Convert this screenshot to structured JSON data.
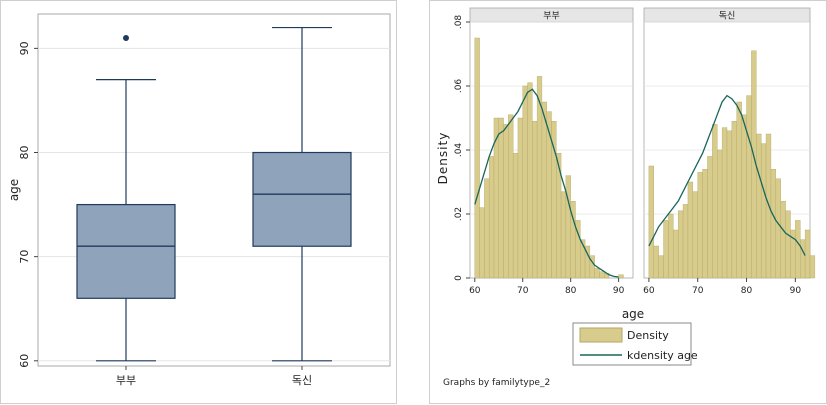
{
  "chart_data": [
    {
      "type": "box",
      "ylabel": "age",
      "yticks": [
        60,
        70,
        80,
        90
      ],
      "ytick_labels": [
        "60",
        "70",
        "80",
        "90"
      ],
      "ylim": [
        59.5,
        93.3
      ],
      "grid": true,
      "categories": [
        "부부",
        "독신"
      ],
      "boxes": [
        {
          "category": "부부",
          "min": 60,
          "q1": 66,
          "median": 71,
          "q3": 75,
          "max": 87,
          "outliers": [
            91
          ]
        },
        {
          "category": "독신",
          "min": 60,
          "q1": 71,
          "median": 76,
          "q3": 80,
          "max": 92,
          "outliers": []
        }
      ],
      "colors": {
        "box_fill": "#8fa3bb",
        "box_stroke": "#1f3b5c",
        "outlier": "#1f3b5c",
        "grid": "#e5e5e5"
      }
    },
    {
      "type": "histogram_density",
      "panels": [
        "부부",
        "독신"
      ],
      "ylabel": "Density",
      "xlabel": "age",
      "xticks": [
        60,
        70,
        80,
        90
      ],
      "xtick_labels": [
        "60",
        "70",
        "80",
        "90"
      ],
      "yticks": [
        0,
        0.02,
        0.04,
        0.06,
        0.08
      ],
      "ytick_labels": [
        "0",
        ".02",
        ".04",
        ".06",
        ".08"
      ],
      "xlim": [
        59,
        93
      ],
      "ylim": [
        0,
        0.08
      ],
      "bin_width": 1,
      "histograms": [
        {
          "panel": "부부",
          "bin_start": 60,
          "values": [
            0.075,
            0.022,
            0.031,
            0.038,
            0.05,
            0.05,
            0.048,
            0.051,
            0.039,
            0.05,
            0.06,
            0.061,
            0.049,
            0.063,
            0.055,
            0.052,
            0.049,
            0.039,
            0.027,
            0.032,
            0.024,
            0.018,
            0.012,
            0.01,
            0.007,
            0.003,
            0.002,
            0.0015,
            0,
            0,
            0.001
          ]
        },
        {
          "panel": "독신",
          "bin_start": 60,
          "values": [
            0.035,
            0.01,
            0.007,
            0.018,
            0.02,
            0.015,
            0.021,
            0.023,
            0.03,
            0.027,
            0.033,
            0.034,
            0.038,
            0.048,
            0.04,
            0.047,
            0.046,
            0.049,
            0.055,
            0.051,
            0.057,
            0.071,
            0.045,
            0.042,
            0.045,
            0.034,
            0.031,
            0.024,
            0.021,
            0.015,
            0.018,
            0.012,
            0.015,
            0.007
          ]
        }
      ],
      "density_curves": [
        {
          "panel": "부부",
          "points": [
            [
              60,
              0.023
            ],
            [
              61,
              0.028
            ],
            [
              62,
              0.033
            ],
            [
              63,
              0.038
            ],
            [
              64,
              0.042
            ],
            [
              65,
              0.045
            ],
            [
              66,
              0.046
            ],
            [
              67,
              0.048
            ],
            [
              68,
              0.05
            ],
            [
              69,
              0.052
            ],
            [
              70,
              0.055
            ],
            [
              71,
              0.058
            ],
            [
              72,
              0.059
            ],
            [
              73,
              0.057
            ],
            [
              74,
              0.053
            ],
            [
              75,
              0.048
            ],
            [
              76,
              0.043
            ],
            [
              77,
              0.038
            ],
            [
              78,
              0.032
            ],
            [
              79,
              0.027
            ],
            [
              80,
              0.021
            ],
            [
              81,
              0.016
            ],
            [
              82,
              0.012
            ],
            [
              83,
              0.009
            ],
            [
              84,
              0.006
            ],
            [
              85,
              0.004
            ],
            [
              86,
              0.003
            ],
            [
              87,
              0.002
            ],
            [
              88,
              0.001
            ],
            [
              89,
              0.0005
            ],
            [
              90,
              0.0003
            ]
          ]
        },
        {
          "panel": "독신",
          "points": [
            [
              60,
              0.01
            ],
            [
              61,
              0.013
            ],
            [
              62,
              0.016
            ],
            [
              63,
              0.018
            ],
            [
              64,
              0.02
            ],
            [
              65,
              0.022
            ],
            [
              66,
              0.024
            ],
            [
              67,
              0.027
            ],
            [
              68,
              0.03
            ],
            [
              69,
              0.033
            ],
            [
              70,
              0.036
            ],
            [
              71,
              0.039
            ],
            [
              72,
              0.043
            ],
            [
              73,
              0.047
            ],
            [
              74,
              0.051
            ],
            [
              75,
              0.055
            ],
            [
              76,
              0.057
            ],
            [
              77,
              0.056
            ],
            [
              78,
              0.054
            ],
            [
              79,
              0.051
            ],
            [
              80,
              0.046
            ],
            [
              81,
              0.041
            ],
            [
              82,
              0.035
            ],
            [
              83,
              0.03
            ],
            [
              84,
              0.025
            ],
            [
              85,
              0.021
            ],
            [
              86,
              0.018
            ],
            [
              87,
              0.016
            ],
            [
              88,
              0.014
            ],
            [
              89,
              0.013
            ],
            [
              90,
              0.012
            ],
            [
              91,
              0.01
            ],
            [
              92,
              0.007
            ]
          ]
        }
      ],
      "legend": {
        "placement": "bottom",
        "entries": [
          {
            "label": "Density",
            "kind": "bar"
          },
          {
            "label": "kdensity age",
            "kind": "line"
          }
        ]
      },
      "note": "Graphs by familytype_2",
      "colors": {
        "bar_fill": "#d8cc8d",
        "bar_stroke": "#b3a766",
        "density_line": "#19665c",
        "panel_header": "#e6e6e6",
        "grid": "#e5e5e5"
      }
    }
  ]
}
